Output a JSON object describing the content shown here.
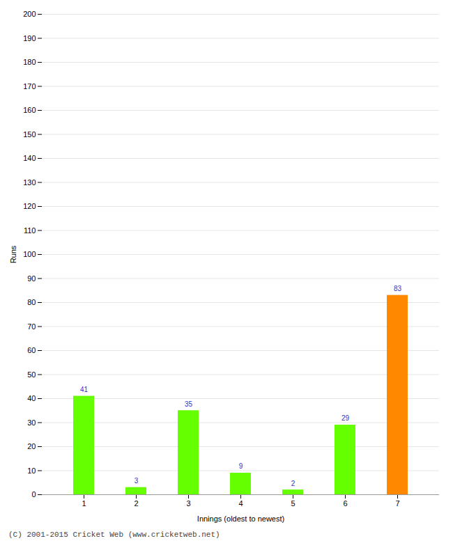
{
  "chart_data": {
    "type": "bar",
    "categories": [
      "1",
      "2",
      "3",
      "4",
      "5",
      "6",
      "7"
    ],
    "values": [
      41,
      3,
      35,
      9,
      2,
      29,
      83
    ],
    "colors": [
      "#66ff00",
      "#66ff00",
      "#66ff00",
      "#66ff00",
      "#66ff00",
      "#66ff00",
      "#ff8800"
    ],
    "xlabel": "Innings (oldest to newest)",
    "ylabel": "Runs",
    "ylim": [
      0,
      200
    ],
    "yticks": [
      0,
      10,
      20,
      30,
      40,
      50,
      60,
      70,
      80,
      90,
      100,
      110,
      120,
      130,
      140,
      150,
      160,
      170,
      180,
      190,
      200
    ],
    "grid": true,
    "data_labels": true,
    "annotations": [
      "(C) 2001-2015 Cricket Web (www.cricketweb.net)"
    ]
  }
}
